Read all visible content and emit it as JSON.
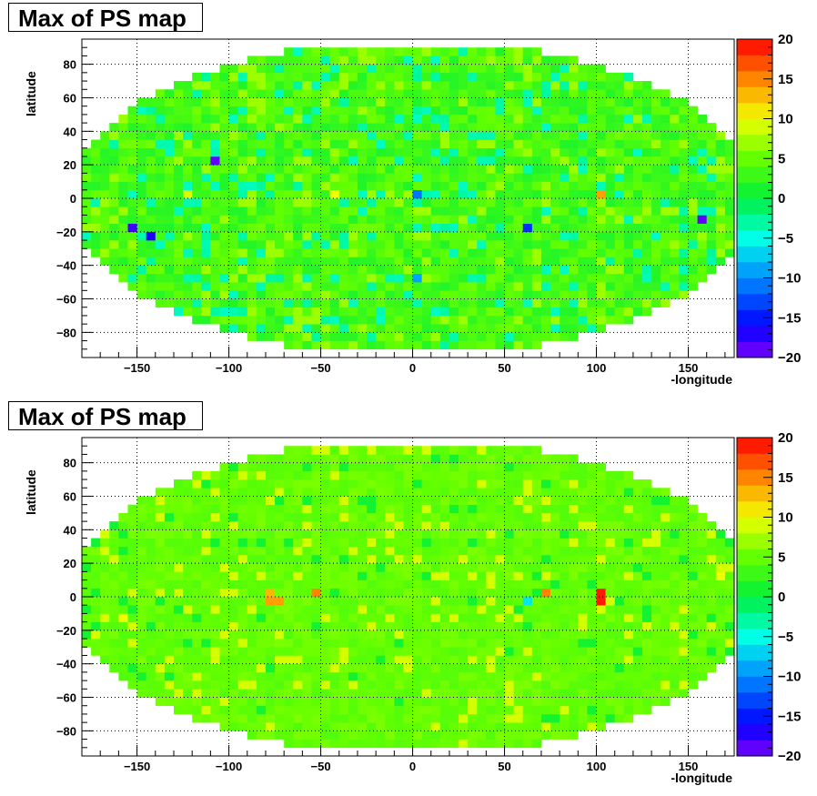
{
  "chart_data": [
    {
      "type": "heatmap",
      "title": "Max of PS map",
      "xlabel": "-longitude",
      "ylabel": "latitude",
      "xlim": [
        -180,
        175
      ],
      "ylim": [
        -95,
        95
      ],
      "x_ticks": [
        -150,
        -100,
        -50,
        0,
        50,
        100,
        150
      ],
      "y_ticks": [
        -80,
        -60,
        -40,
        -20,
        0,
        20,
        40,
        60,
        80
      ],
      "z_range": [
        -20,
        20
      ],
      "z_ticks": [
        -20,
        -15,
        -10,
        -5,
        0,
        5,
        10,
        15,
        20
      ],
      "grid": true,
      "note_cells": [
        {
          "x": -110,
          "y": 20,
          "value": -19
        },
        {
          "x": -155,
          "y": -20,
          "value": -18
        },
        {
          "x": -145,
          "y": -25,
          "value": -17
        },
        {
          "x": 155,
          "y": -15,
          "value": -19
        },
        {
          "x": 60,
          "y": -20,
          "value": -14
        },
        {
          "x": 0,
          "y": 0,
          "value": -11
        },
        {
          "x": 100,
          "y": 0,
          "value": 14
        },
        {
          "x": -45,
          "y": 0,
          "value": 10
        },
        {
          "x": -125,
          "y": 0,
          "value": 9
        },
        {
          "x": 0,
          "y": -50,
          "value": -9
        }
      ]
    },
    {
      "type": "heatmap",
      "title": "Max of PS map",
      "xlabel": "-longitude",
      "ylabel": "latitude",
      "xlim": [
        -180,
        175
      ],
      "ylim": [
        -95,
        95
      ],
      "x_ticks": [
        -150,
        -100,
        -50,
        0,
        50,
        100,
        150
      ],
      "y_ticks": [
        -80,
        -60,
        -40,
        -20,
        0,
        20,
        40,
        60,
        80
      ],
      "z_range": [
        -20,
        20
      ],
      "z_ticks": [
        -20,
        -15,
        -10,
        -5,
        0,
        5,
        10,
        15,
        20
      ],
      "grid": true,
      "note_cells": [
        {
          "x": 100,
          "y": 0,
          "value": 19
        },
        {
          "x": 100,
          "y": -5,
          "value": 19
        },
        {
          "x": -55,
          "y": 0,
          "value": 15
        },
        {
          "x": 70,
          "y": 0,
          "value": 15
        },
        {
          "x": -80,
          "y": -5,
          "value": 14
        },
        {
          "x": -75,
          "y": -5,
          "value": 14
        },
        {
          "x": -80,
          "y": 0,
          "value": 13
        },
        {
          "x": 60,
          "y": -5,
          "value": -6
        },
        {
          "x": -160,
          "y": -15,
          "value": 10
        },
        {
          "x": 165,
          "y": 10,
          "value": 10
        }
      ]
    }
  ]
}
